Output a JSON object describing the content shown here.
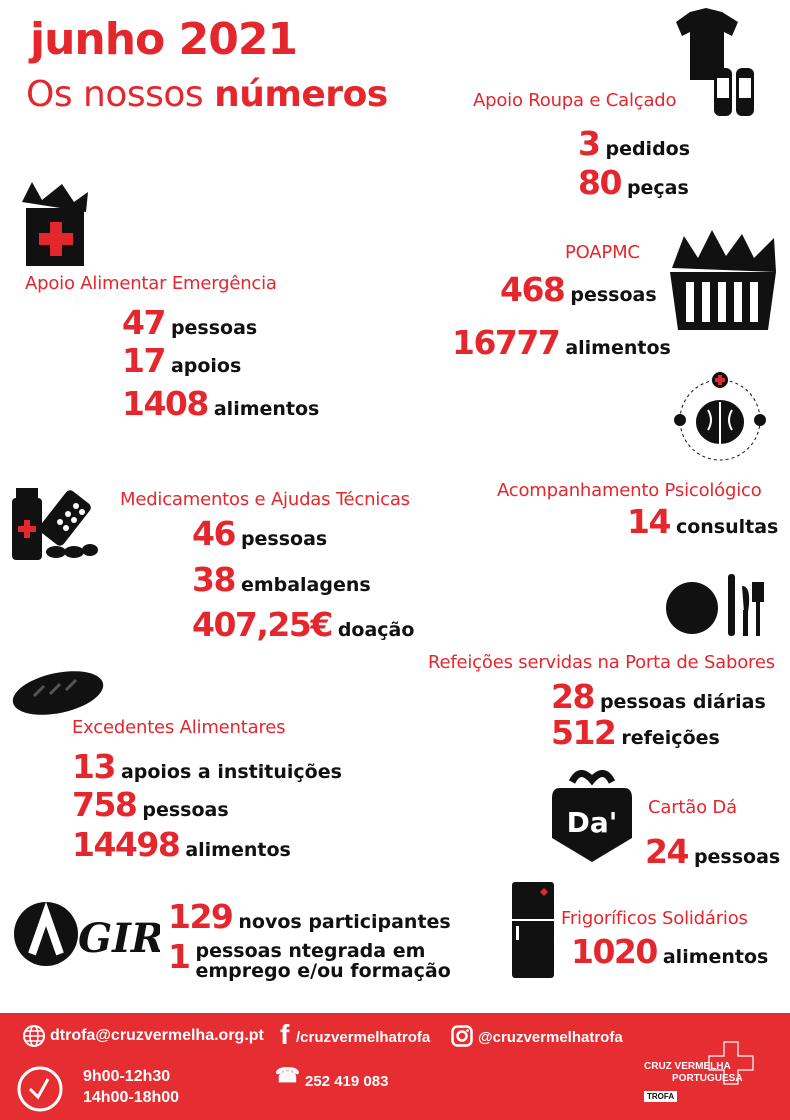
{
  "header": {
    "title": "junho 2021",
    "subtitle_light": "Os nossos",
    "subtitle_bold": "números"
  },
  "colors": {
    "accent": "#e4262d",
    "footer": "#e52d32",
    "text": "#111111"
  },
  "sections": {
    "roupa": {
      "label": "Apoio Roupa e Calçado",
      "icon": "clothes-shoes-icon",
      "stats": [
        {
          "n": "3",
          "w": "pedidos"
        },
        {
          "n": "80",
          "w": "peças"
        }
      ]
    },
    "poapmc": {
      "label": "POAPMC",
      "icon": "food-basket-icon",
      "stats": [
        {
          "n": "468",
          "w": "pessoas"
        },
        {
          "n": "16777",
          "w": "alimentos"
        }
      ]
    },
    "alimentar": {
      "label": "Apoio Alimentar Emergência",
      "icon": "grocery-bag-icon",
      "stats": [
        {
          "n": "47",
          "w": "pessoas"
        },
        {
          "n": "17",
          "w": "apoios"
        },
        {
          "n": "1408",
          "w": "alimentos"
        }
      ]
    },
    "psico": {
      "label": "Acompanhamento Psicológico",
      "icon": "brain-icon",
      "stats": [
        {
          "n": "14",
          "w": "consultas"
        }
      ]
    },
    "medic": {
      "label": "Medicamentos e Ajudas Técnicas",
      "icon": "medicine-icon",
      "stats": [
        {
          "n": "46",
          "w": "pessoas"
        },
        {
          "n": "38",
          "w": "embalagens"
        },
        {
          "n": "407,25€",
          "w": "doação"
        }
      ]
    },
    "refeicoes": {
      "label": "Refeições servidas na Porta de Sabores",
      "icon": "plate-cutlery-icon",
      "stats": [
        {
          "n": "28",
          "w": "pessoas diárias"
        },
        {
          "n": "512",
          "w": "refeições"
        }
      ]
    },
    "excedentes": {
      "label": "Excedentes Alimentares",
      "icon": "bread-icon",
      "stats": [
        {
          "n": "13",
          "w": "apoios a instituições"
        },
        {
          "n": "758",
          "w": "pessoas"
        },
        {
          "n": "14498",
          "w": "alimentos"
        }
      ]
    },
    "cartao": {
      "label": "Cartão Dá",
      "logo": "Da'",
      "icon": "gift-icon",
      "stats": [
        {
          "n": "24",
          "w": "pessoas"
        }
      ]
    },
    "frigorificos": {
      "label": "Frigoríficos Solidários",
      "icon": "fridge-icon",
      "stats": [
        {
          "n": "1020",
          "w": "alimentos"
        }
      ]
    },
    "agir": {
      "logo": "AGIR",
      "stats": [
        {
          "n": "129",
          "w": "novos participantes"
        },
        {
          "n": "1",
          "w": "pessoas ntegrada em",
          "w2": "emprego e/ou formação"
        }
      ]
    }
  },
  "footer": {
    "email": "dtrofa@cruzvermelha.org.pt",
    "facebook": "/cruzvermelhatrofa",
    "instagram": "@cruzvermelhatrofa",
    "hours1": "9h00-12h30",
    "hours2": "14h00-18h00",
    "phone": "252 419 083",
    "org1": "CRUZ VERMELHA",
    "org2": "PORTUGUESA",
    "branch": "TROFA"
  }
}
